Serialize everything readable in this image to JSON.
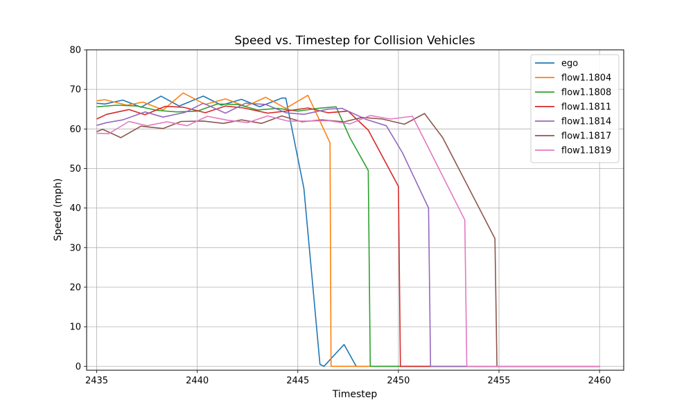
{
  "chart_data": {
    "type": "line",
    "title": "Speed vs. Timestep for Collision Vehicles",
    "xlabel": "Timestep",
    "ylabel": "Speed (mph)",
    "xlim": [
      2434.5,
      2461.2
    ],
    "ylim": [
      -1,
      80
    ],
    "xticks": [
      2435,
      2440,
      2445,
      2450,
      2455,
      2460
    ],
    "yticks": [
      0,
      10,
      20,
      30,
      40,
      50,
      60,
      70,
      80
    ],
    "grid": true,
    "legend_position": "upper right",
    "series": [
      {
        "name": "ego",
        "color": "#1f77b4",
        "points": [
          [
            2435,
            66.5
          ],
          [
            2435.4,
            66.3
          ],
          [
            2436.3,
            67.3
          ],
          [
            2437.2,
            65.5
          ],
          [
            2438.2,
            68.3
          ],
          [
            2439.1,
            65.8
          ],
          [
            2440.3,
            68.3
          ],
          [
            2441.2,
            66.0
          ],
          [
            2442.2,
            67.5
          ],
          [
            2443.1,
            65.6
          ],
          [
            2444.2,
            67.8
          ],
          [
            2444.4,
            67.8
          ],
          [
            2445.3,
            45.0
          ],
          [
            2446.1,
            0.5
          ],
          [
            2446.3,
            0.0
          ],
          [
            2447.3,
            5.5
          ],
          [
            2447.9,
            0.0
          ],
          [
            2460,
            0.0
          ]
        ]
      },
      {
        "name": "flow1.1804",
        "color": "#ff7f0e",
        "points": [
          [
            2435,
            67.1
          ],
          [
            2435.4,
            67.4
          ],
          [
            2436.5,
            66.0
          ],
          [
            2437.3,
            66.8
          ],
          [
            2438.3,
            64.8
          ],
          [
            2439.3,
            69.1
          ],
          [
            2440.4,
            66.2
          ],
          [
            2441.4,
            67.6
          ],
          [
            2442.4,
            65.7
          ],
          [
            2443.4,
            68.0
          ],
          [
            2444.4,
            65.2
          ],
          [
            2445.5,
            68.5
          ],
          [
            2446.6,
            56.5
          ],
          [
            2446.65,
            0.0
          ],
          [
            2460,
            0.0
          ]
        ]
      },
      {
        "name": "flow1.1808",
        "color": "#2ca02c",
        "points": [
          [
            2435,
            65.6
          ],
          [
            2436,
            66.0
          ],
          [
            2437,
            65.8
          ],
          [
            2438,
            64.7
          ],
          [
            2439,
            64.3
          ],
          [
            2440,
            64.5
          ],
          [
            2441,
            66.3
          ],
          [
            2442,
            66.2
          ],
          [
            2443,
            64.8
          ],
          [
            2444,
            65.2
          ],
          [
            2445,
            64.5
          ],
          [
            2446,
            65.2
          ],
          [
            2446.9,
            65.6
          ],
          [
            2447.6,
            57.7
          ],
          [
            2448.5,
            49.5
          ],
          [
            2448.6,
            0.0
          ],
          [
            2460,
            0.0
          ]
        ]
      },
      {
        "name": "flow1.1811",
        "color": "#d62728",
        "points": [
          [
            2435,
            62.5
          ],
          [
            2435.5,
            63.7
          ],
          [
            2436.6,
            64.9
          ],
          [
            2437.4,
            63.6
          ],
          [
            2438.4,
            65.7
          ],
          [
            2439.3,
            65.5
          ],
          [
            2440.4,
            64.1
          ],
          [
            2441.4,
            65.8
          ],
          [
            2442.3,
            65.3
          ],
          [
            2443.5,
            64.0
          ],
          [
            2444.4,
            64.5
          ],
          [
            2445.5,
            65.3
          ],
          [
            2446.5,
            64.1
          ],
          [
            2447.5,
            64.5
          ],
          [
            2448.5,
            59.7
          ],
          [
            2450.0,
            45.5
          ],
          [
            2450.1,
            0.0
          ],
          [
            2460,
            0.0
          ]
        ]
      },
      {
        "name": "flow1.1814",
        "color": "#9467bd",
        "points": [
          [
            2435,
            60.9
          ],
          [
            2435.5,
            61.6
          ],
          [
            2436.3,
            62.3
          ],
          [
            2437.4,
            64.3
          ],
          [
            2438.3,
            63.0
          ],
          [
            2439.4,
            64.2
          ],
          [
            2440.3,
            66.5
          ],
          [
            2441.4,
            64.0
          ],
          [
            2442.4,
            66.5
          ],
          [
            2443.4,
            66.2
          ],
          [
            2444.4,
            64.1
          ],
          [
            2445.3,
            63.7
          ],
          [
            2446.5,
            65.0
          ],
          [
            2447.2,
            65.2
          ],
          [
            2448.4,
            62.4
          ],
          [
            2449.4,
            60.8
          ],
          [
            2450.2,
            54.0
          ],
          [
            2451.5,
            40.0
          ],
          [
            2451.6,
            0.0
          ],
          [
            2460,
            0.0
          ]
        ]
      },
      {
        "name": "flow1.1817",
        "color": "#8c564b",
        "points": [
          [
            2435,
            59.3
          ],
          [
            2435.3,
            59.9
          ],
          [
            2436.2,
            57.8
          ],
          [
            2437.2,
            60.7
          ],
          [
            2438.3,
            60.1
          ],
          [
            2439.2,
            61.9
          ],
          [
            2440.3,
            62.0
          ],
          [
            2441.3,
            61.4
          ],
          [
            2442.2,
            62.3
          ],
          [
            2443.2,
            61.4
          ],
          [
            2444.2,
            63.3
          ],
          [
            2445.2,
            61.8
          ],
          [
            2446.2,
            62.3
          ],
          [
            2447.3,
            61.8
          ],
          [
            2448.2,
            62.9
          ],
          [
            2449.2,
            62.5
          ],
          [
            2450.3,
            61.2
          ],
          [
            2451.3,
            63.9
          ],
          [
            2452.2,
            57.8
          ],
          [
            2454.8,
            32.3
          ],
          [
            2454.9,
            0.0
          ],
          [
            2460,
            0.0
          ]
        ]
      },
      {
        "name": "flow1.1819",
        "color": "#e377c2",
        "points": [
          [
            2435,
            58.9
          ],
          [
            2435.6,
            58.8
          ],
          [
            2436.6,
            61.9
          ],
          [
            2437.5,
            60.8
          ],
          [
            2438.5,
            61.8
          ],
          [
            2439.5,
            60.8
          ],
          [
            2440.5,
            63.2
          ],
          [
            2441.5,
            62.2
          ],
          [
            2442.5,
            61.6
          ],
          [
            2443.5,
            63.3
          ],
          [
            2444.5,
            62.0
          ],
          [
            2445.5,
            62.0
          ],
          [
            2446.5,
            62.1
          ],
          [
            2447.6,
            61.3
          ],
          [
            2448.6,
            63.4
          ],
          [
            2449.6,
            62.5
          ],
          [
            2450.7,
            63.2
          ],
          [
            2453.3,
            37.0
          ],
          [
            2453.4,
            0.0
          ],
          [
            2460,
            0.0
          ]
        ]
      }
    ]
  }
}
